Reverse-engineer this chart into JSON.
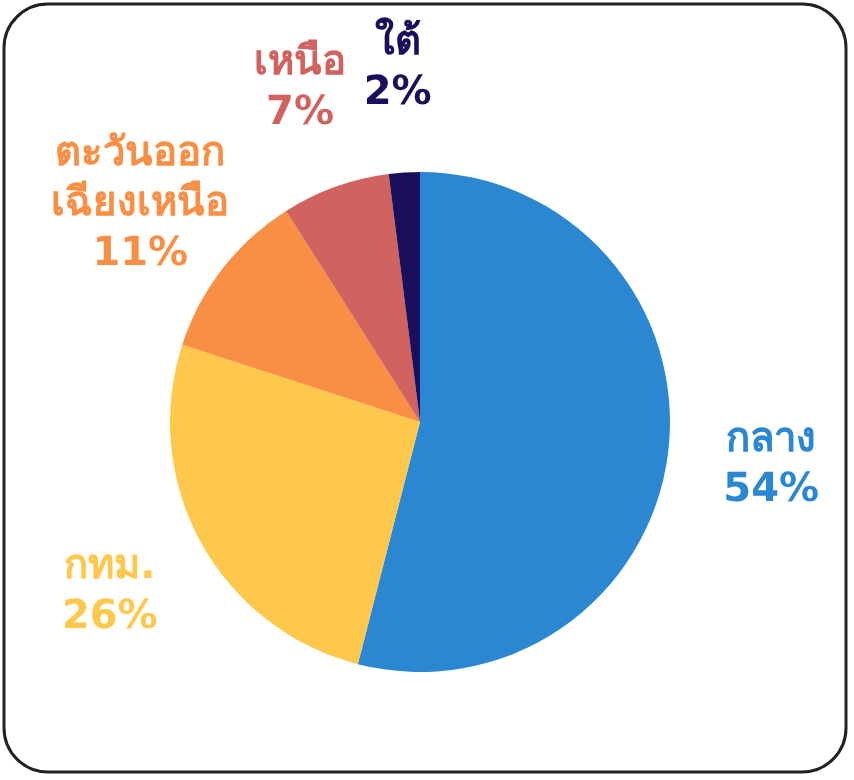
{
  "chart_data": {
    "type": "pie",
    "categories": [
      "กลาง",
      "กทม.",
      "ตะวันออก\nเฉียงเหนือ",
      "เหนือ",
      "ใต้"
    ],
    "values": [
      54,
      26,
      11,
      7,
      2
    ],
    "value_labels": [
      "54%",
      "26%",
      "11%",
      "7%",
      "2%"
    ],
    "colors": [
      "#2b87d1",
      "#fec84d",
      "#f88f45",
      "#d0635f",
      "#1a0f5a"
    ]
  }
}
